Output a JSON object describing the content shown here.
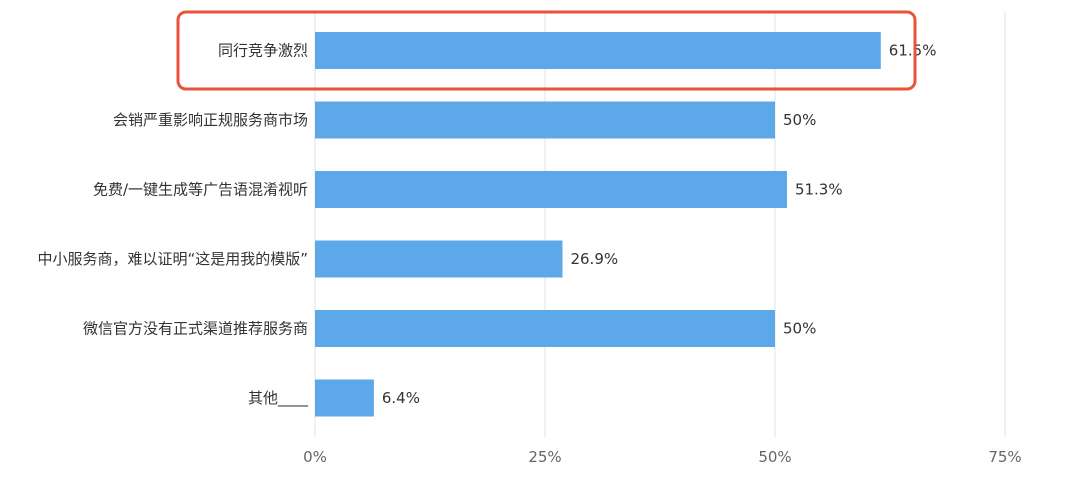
{
  "chart_data": {
    "type": "bar",
    "orientation": "horizontal",
    "categories": [
      "同行竞争激烈",
      "会销严重影响正规服务商市场",
      "免费/一键生成等广告语混淆视听",
      "中小服务商，难以证明“这是用我的模版”",
      "微信官方没有正式渠道推荐服务商",
      "其他____"
    ],
    "values": [
      61.5,
      50,
      51.3,
      26.9,
      50,
      6.4
    ],
    "value_labels": [
      "61.5%",
      "50%",
      "51.3%",
      "26.9%",
      "50%",
      "6.4%"
    ],
    "xlim": [
      0,
      75
    ],
    "x_ticks": [
      0,
      25,
      50,
      75
    ],
    "x_tick_labels": [
      "0%",
      "25%",
      "50%",
      "75%"
    ],
    "grid": true,
    "legend": "none",
    "highlighted_category": "同行竞争激烈",
    "colors": {
      "bar": "#5ca8e8",
      "highlight_box": "#e8533a",
      "grid": "#e3e3e3",
      "text": "#333333"
    }
  }
}
